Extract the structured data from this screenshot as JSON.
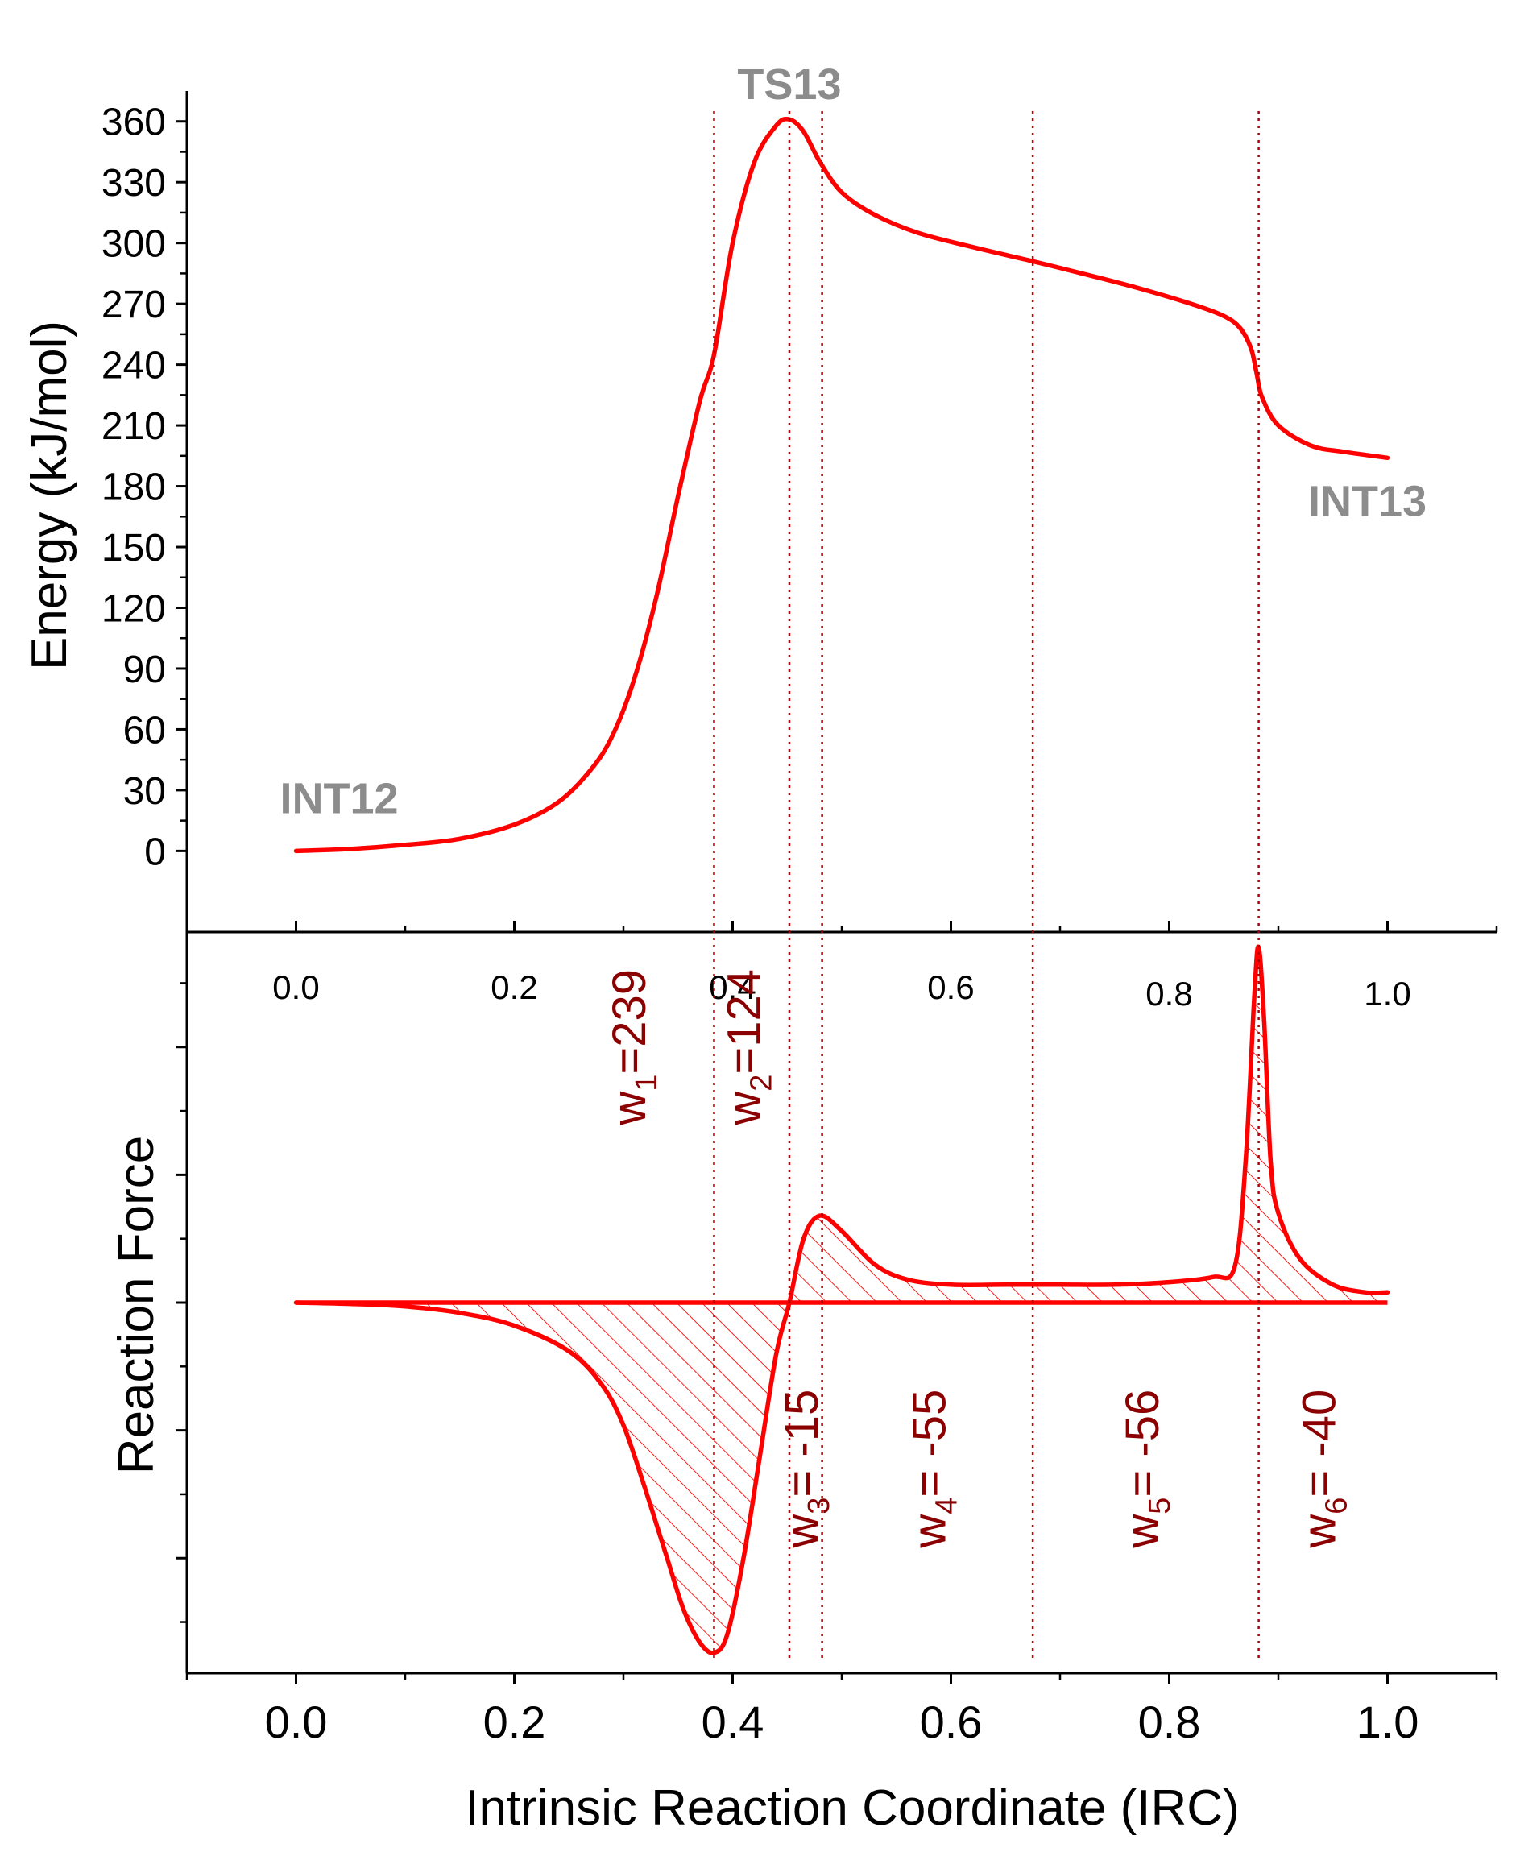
{
  "chart_data": [
    {
      "type": "line",
      "panel": "top",
      "ylabel": "Energy (kJ/mol)",
      "xlim": [
        -0.1,
        1.1
      ],
      "ylim": [
        -40,
        375
      ],
      "yticks": [
        0,
        30,
        60,
        90,
        120,
        150,
        180,
        210,
        240,
        270,
        300,
        330,
        360
      ],
      "xticks": [
        0.0,
        0.2,
        0.4,
        0.6,
        0.8,
        1.0
      ],
      "xtick_labels": [
        "0.0",
        "0.2",
        "0.4",
        "0.6",
        "0.8",
        "1.0"
      ],
      "color": "#ff0000",
      "series": [
        {
          "name": "Energy",
          "x": [
            0.0,
            0.05,
            0.1,
            0.15,
            0.2,
            0.24,
            0.27,
            0.29,
            0.31,
            0.33,
            0.35,
            0.37,
            0.383,
            0.4,
            0.42,
            0.44,
            0.452,
            0.465,
            0.48,
            0.5,
            0.53,
            0.57,
            0.62,
            0.675,
            0.72,
            0.77,
            0.82,
            0.85,
            0.865,
            0.875,
            0.88,
            0.885,
            0.9,
            0.93,
            0.96,
            1.0
          ],
          "y": [
            0,
            1,
            3,
            6,
            13,
            24,
            40,
            57,
            85,
            125,
            175,
            222,
            245,
            300,
            340,
            358,
            361,
            355,
            340,
            325,
            314,
            305,
            298,
            291,
            285,
            278,
            270,
            264,
            258,
            248,
            236,
            224,
            210,
            200,
            197,
            194
          ]
        }
      ],
      "annotations": [
        {
          "text": "TS13",
          "x": 0.452,
          "y": 361
        },
        {
          "text": "INT12",
          "x": 0.0,
          "y": 0
        },
        {
          "text": "INT13",
          "x": 1.0,
          "y": 194
        }
      ]
    },
    {
      "type": "area",
      "panel": "bottom",
      "ylabel": "Reaction Force",
      "xlabel": "Intrinsic Reaction Coordinate (IRC)",
      "xlim": [
        -0.1,
        1.1
      ],
      "ylim": [
        -1.45,
        1.45
      ],
      "xticks": [
        0.0,
        0.2,
        0.4,
        0.6,
        0.8,
        1.0
      ],
      "xtick_labels": [
        "0.0",
        "0.2",
        "0.4",
        "0.6",
        "0.8",
        "1.0"
      ],
      "yticks": [
        -1.5,
        -1.0,
        -0.5,
        0,
        0.5,
        1.0,
        1.5
      ],
      "color": "#ff0000",
      "series": [
        {
          "name": "Reaction Force",
          "x": [
            0.0,
            0.05,
            0.1,
            0.15,
            0.2,
            0.25,
            0.28,
            0.3,
            0.32,
            0.34,
            0.355,
            0.37,
            0.383,
            0.395,
            0.41,
            0.425,
            0.44,
            0.452,
            0.465,
            0.48,
            0.5,
            0.53,
            0.56,
            0.6,
            0.65,
            0.7,
            0.75,
            0.8,
            0.84,
            0.86,
            0.87,
            0.878,
            0.882,
            0.887,
            0.893,
            0.9,
            0.92,
            0.95,
            0.98,
            1.0
          ],
          "y": [
            0,
            -0.005,
            -0.015,
            -0.04,
            -0.09,
            -0.19,
            -0.32,
            -0.48,
            -0.73,
            -1.0,
            -1.2,
            -1.33,
            -1.37,
            -1.3,
            -1.0,
            -0.6,
            -0.2,
            0,
            0.25,
            0.34,
            0.28,
            0.15,
            0.09,
            0.07,
            0.07,
            0.07,
            0.07,
            0.08,
            0.1,
            0.14,
            0.55,
            1.2,
            1.39,
            1.1,
            0.55,
            0.35,
            0.17,
            0.07,
            0.04,
            0.04
          ]
        }
      ],
      "dividers_x": [
        0.383,
        0.452,
        0.482,
        0.675,
        0.882
      ],
      "work_labels": [
        {
          "id": "w1",
          "sub": "1",
          "value": "239",
          "text": "w1=239",
          "x": 0.32,
          "y": 1.0
        },
        {
          "id": "w2",
          "sub": "2",
          "value": "124",
          "text": "w2=124",
          "x": 0.425,
          "y": 1.0
        },
        {
          "id": "w3",
          "sub": "3",
          "value": " -15",
          "text": "w3= -15",
          "x": 0.478,
          "y": -0.65
        },
        {
          "id": "w4",
          "sub": "4",
          "value": " -55",
          "text": "w4= -55",
          "x": 0.595,
          "y": -0.65
        },
        {
          "id": "w5",
          "sub": "5",
          "value": " -56",
          "text": "w5= -56",
          "x": 0.79,
          "y": -0.65
        },
        {
          "id": "w6",
          "sub": "6",
          "value": " -40",
          "text": "w6= -40",
          "x": 0.952,
          "y": -0.65
        }
      ]
    }
  ]
}
